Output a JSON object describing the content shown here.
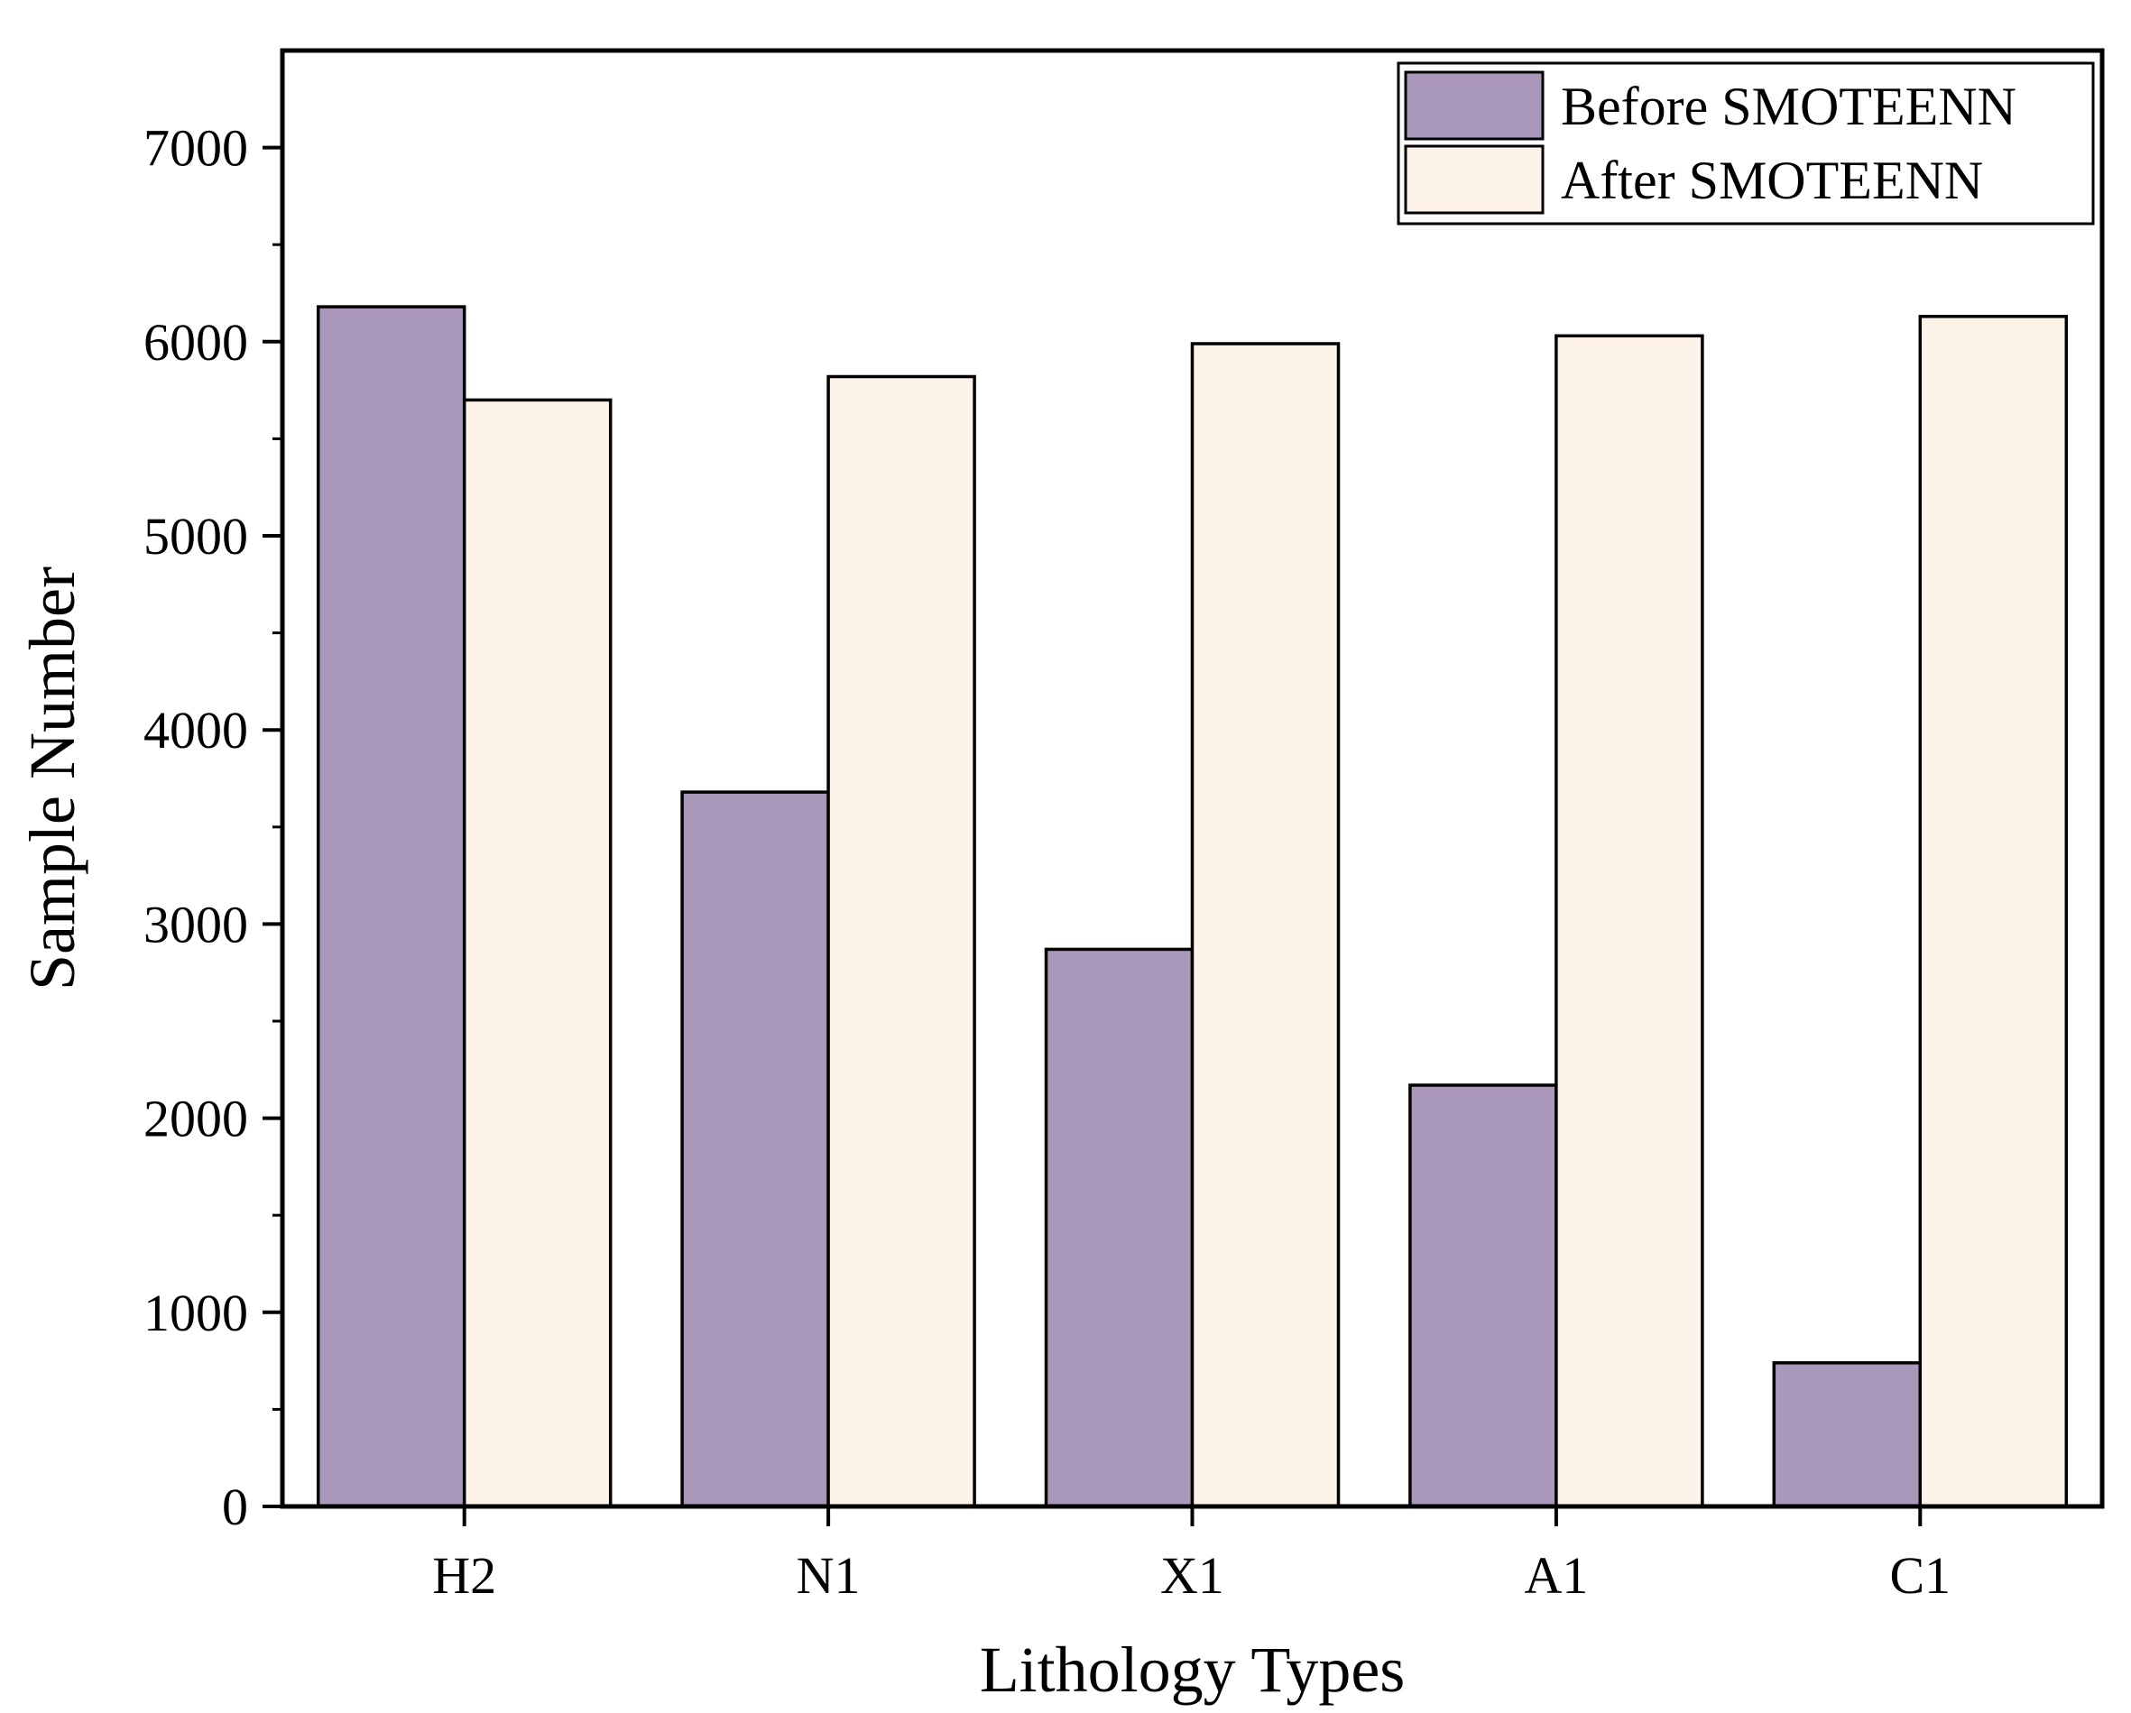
{
  "chart_data": {
    "type": "bar",
    "title": "",
    "xlabel": "Lithology Types",
    "ylabel": "Sample Number",
    "categories": [
      "H2",
      "N1",
      "X1",
      "A1",
      "C1"
    ],
    "series": [
      {
        "name": "Before SMOTEENN",
        "color": "#aa98ba",
        "values": [
          6180,
          3680,
          2870,
          2170,
          740
        ]
      },
      {
        "name": "After SMOTEENN",
        "color": "#fef3e8",
        "values": [
          5700,
          5820,
          5990,
          6030,
          6130
        ]
      }
    ],
    "ylim": [
      0,
      7500
    ],
    "yticks": [
      0,
      1000,
      2000,
      3000,
      4000,
      5000,
      6000,
      7000
    ],
    "ytick_labels": [
      "0",
      "1000",
      "2000",
      "3000",
      "4000",
      "5000",
      "6000",
      "7000"
    ],
    "grid": false,
    "legend_position": "top-right"
  }
}
